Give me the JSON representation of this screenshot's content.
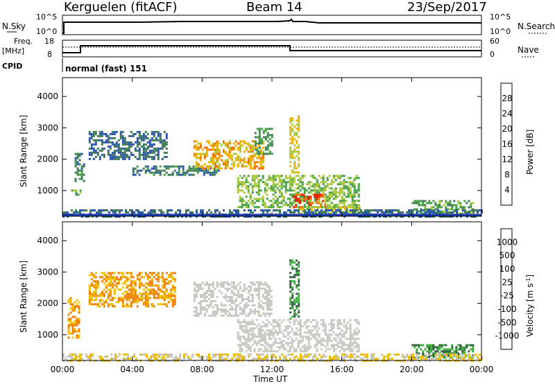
{
  "header": {
    "site": "Kerguelen (fitACF)",
    "beam": "Beam 14",
    "date": "23/Sep/2017"
  },
  "top_panels": {
    "nsky_label": "N.Sky",
    "nsky_ticks": [
      "10^5",
      "10^0"
    ],
    "nsearch_label": "N.Search",
    "nsearch_ticks": [
      "10^5",
      "10^0"
    ],
    "freq_label_1": "Freq.",
    "freq_label_2": "[MHz]",
    "freq_ticks": [
      "18",
      "8"
    ],
    "nave_label": "Nave",
    "nave_ticks": [
      "60",
      "0"
    ],
    "cpid_label": "CPID",
    "cpid_text": "normal (fast) 151"
  },
  "colorbars": {
    "power": {
      "label": "Power [dB]",
      "ticks": [
        "28",
        "24",
        "20",
        "16",
        "12",
        "8",
        "4"
      ],
      "colors": [
        "#1010e0",
        "#2a55b0",
        "#3e7a55",
        "#45a045",
        "#a8c838",
        "#f0b000",
        "#f07000",
        "#e02000"
      ]
    },
    "velocity": {
      "label": "Velocity [m s",
      "label_sup": "-1",
      "label_end": "]",
      "ticks": [
        "1000",
        "500",
        "100",
        "25",
        "-25",
        "-100",
        "-500",
        "-1000"
      ],
      "colors": [
        "#1030c0",
        "#3050a0",
        "#306040",
        "#40b040",
        "#c8c8c0",
        "#c8c8c0",
        "#f0c000",
        "#f08000",
        "#f04000",
        "#e00000"
      ]
    }
  },
  "axes": {
    "ylabel": "Slant Range [km]",
    "yticks": [
      "4000",
      "3000",
      "2000",
      "1000"
    ],
    "xlabel": "Time UT",
    "xticks": [
      "00:00",
      "04:00",
      "08:00",
      "12:00",
      "16:00",
      "20:00",
      "00:00"
    ]
  },
  "chart_data": {
    "type": "heatmap",
    "title": "Kerguelen (fitACF) Beam 14 23/Sep/2017",
    "xlabel": "Time UT",
    "ylabel": "Slant Range [km]",
    "xlim_hours": [
      0,
      24
    ],
    "ylim_km": [
      180,
      4600
    ],
    "cpid": "normal (fast) 151",
    "freq_mhz": [
      {
        "start_h": 0,
        "end_h": 1,
        "value": 9.5
      },
      {
        "start_h": 1,
        "end_h": 13,
        "value": 12.2
      },
      {
        "start_h": 13,
        "end_h": 24,
        "value": 10.8
      }
    ],
    "power_regions": [
      {
        "t0": 0.5,
        "t1": 1.0,
        "r0": 900,
        "r1": 1100,
        "db": 14
      },
      {
        "t0": 0.7,
        "t1": 1.2,
        "r0": 1300,
        "r1": 2200,
        "db": 10
      },
      {
        "t0": 1.5,
        "t1": 6.0,
        "r0": 2000,
        "r1": 2900,
        "db": 8
      },
      {
        "t0": 4.0,
        "t1": 9.0,
        "r0": 1500,
        "r1": 1800,
        "db": 10
      },
      {
        "t0": 7.5,
        "t1": 11.5,
        "r0": 1700,
        "r1": 2600,
        "db": 22
      },
      {
        "t0": 11.0,
        "t1": 12.0,
        "r0": 2200,
        "r1": 3000,
        "db": 12
      },
      {
        "t0": 13.0,
        "t1": 13.5,
        "r0": 1600,
        "r1": 3400,
        "db": 20
      },
      {
        "t0": 10.0,
        "t1": 17.0,
        "r0": 500,
        "r1": 1500,
        "db": 16
      },
      {
        "t0": 13.2,
        "t1": 15.0,
        "r0": 500,
        "r1": 900,
        "db": 28
      },
      {
        "t0": 13.5,
        "t1": 17.0,
        "r0": 250,
        "r1": 500,
        "db": 18
      },
      {
        "t0": 20.0,
        "t1": 23.5,
        "r0": 300,
        "r1": 700,
        "db": 14
      },
      {
        "t0": 0.0,
        "t1": 24.0,
        "r0": 180,
        "r1": 400,
        "db": 8
      }
    ],
    "velocity_regions": [
      {
        "t0": 0.3,
        "t1": 1.0,
        "r0": 900,
        "r1": 2200,
        "ms": -100
      },
      {
        "t0": 1.5,
        "t1": 6.5,
        "r0": 1900,
        "r1": 3000,
        "ms": -100
      },
      {
        "t0": 7.5,
        "t1": 12.0,
        "r0": 1600,
        "r1": 2700,
        "ms": 0
      },
      {
        "t0": 13.0,
        "t1": 13.5,
        "r0": 1500,
        "r1": 3400,
        "ms": 100
      },
      {
        "t0": 10.0,
        "t1": 17.0,
        "r0": 500,
        "r1": 1500,
        "ms": 0
      },
      {
        "t0": 20.0,
        "t1": 23.5,
        "r0": 300,
        "r1": 700,
        "ms": 100
      },
      {
        "t0": 0.0,
        "t1": 24.0,
        "r0": 180,
        "r1": 400,
        "ms": -25
      }
    ]
  }
}
